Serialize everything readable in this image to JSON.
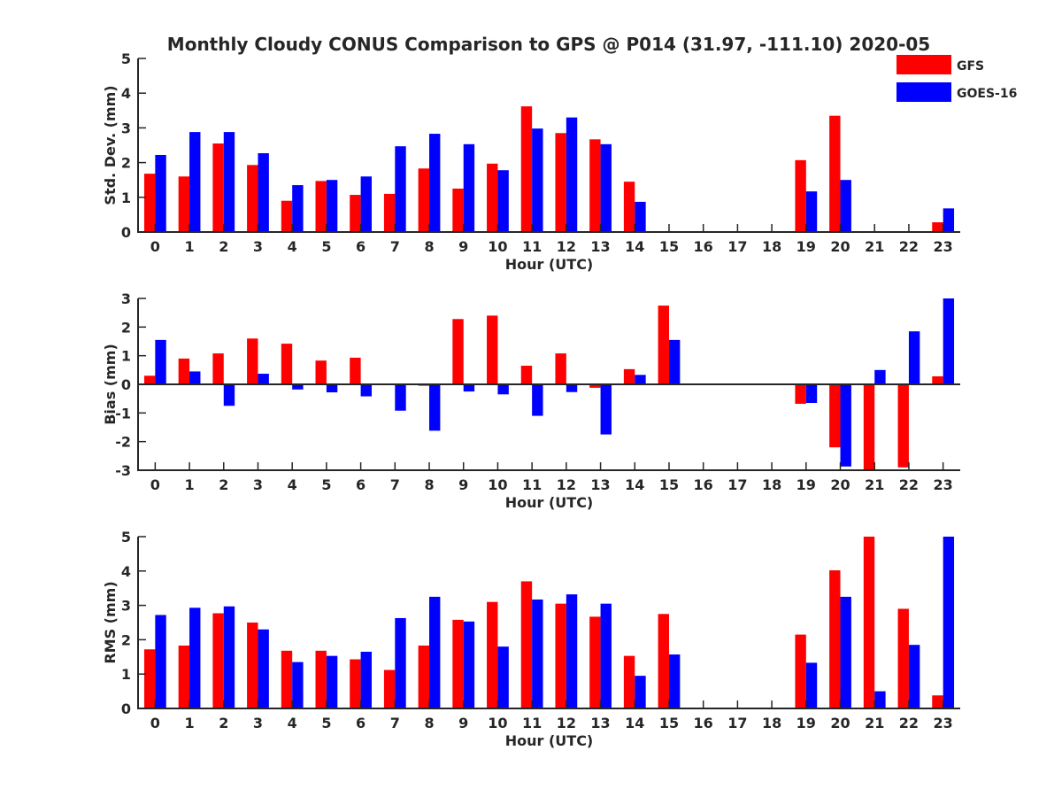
{
  "chart_data": {
    "type": "bar",
    "title": "Monthly Cloudy CONUS Comparison to GPS @ P014 (31.97, -111.10) 2020-05",
    "categories": [
      "0",
      "1",
      "2",
      "3",
      "4",
      "5",
      "6",
      "7",
      "8",
      "9",
      "10",
      "11",
      "12",
      "13",
      "14",
      "15",
      "16",
      "17",
      "18",
      "19",
      "20",
      "21",
      "22",
      "23"
    ],
    "legend": {
      "placement": "top-right",
      "entries": [
        {
          "name": "GFS",
          "color": "#ff0000"
        },
        {
          "name": "GOES-16",
          "color": "#0000ff"
        }
      ]
    },
    "panels": [
      {
        "id": "std",
        "ylabel": "Std. Dev. (mm)",
        "xlabel": "Hour (UTC)",
        "ylim": [
          0,
          5
        ],
        "yticks": [
          0,
          1,
          2,
          3,
          4,
          5
        ],
        "series": [
          {
            "name": "GFS",
            "color": "#ff0000",
            "values": [
              1.68,
              1.6,
              2.55,
              1.93,
              0.9,
              1.47,
              1.07,
              1.1,
              1.83,
              1.25,
              1.97,
              3.62,
              2.85,
              2.67,
              1.45,
              0,
              0,
              0,
              0,
              2.07,
              3.35,
              0,
              0,
              0.28
            ]
          },
          {
            "name": "GOES-16",
            "color": "#0000ff",
            "values": [
              2.22,
              2.88,
              2.88,
              2.27,
              1.35,
              1.5,
              1.6,
              2.47,
              2.83,
              2.53,
              1.78,
              2.98,
              3.3,
              2.53,
              0.87,
              0,
              0,
              0,
              0,
              1.17,
              1.5,
              0,
              0,
              0.68
            ]
          }
        ]
      },
      {
        "id": "bias",
        "ylabel": "Bias (mm)",
        "xlabel": "Hour (UTC)",
        "ylim": [
          -3,
          3
        ],
        "yticks": [
          -3,
          -2,
          -1,
          0,
          1,
          2,
          3
        ],
        "series": [
          {
            "name": "GFS",
            "color": "#ff0000",
            "values": [
              0.3,
              0.9,
              1.08,
              1.6,
              1.42,
              0.83,
              0.93,
              0,
              -0.05,
              2.28,
              2.4,
              0.65,
              1.08,
              -0.12,
              0.53,
              2.75,
              0,
              0,
              0,
              -0.68,
              -2.2,
              -3.0,
              -2.9,
              0.28
            ]
          },
          {
            "name": "GOES-16",
            "color": "#0000ff",
            "values": [
              1.55,
              0.45,
              -0.75,
              0.37,
              -0.18,
              -0.28,
              -0.42,
              -0.92,
              -1.62,
              -0.25,
              -0.35,
              -1.1,
              -0.27,
              -1.75,
              0.33,
              1.55,
              0,
              0,
              0,
              -0.65,
              -2.87,
              0.5,
              1.85,
              3.0
            ]
          }
        ]
      },
      {
        "id": "rms",
        "ylabel": "RMS (mm)",
        "xlabel": "Hour (UTC)",
        "ylim": [
          0,
          5
        ],
        "yticks": [
          0,
          1,
          2,
          3,
          4,
          5
        ],
        "series": [
          {
            "name": "GFS",
            "color": "#ff0000",
            "values": [
              1.72,
              1.83,
              2.77,
              2.5,
              1.68,
              1.68,
              1.43,
              1.12,
              1.83,
              2.58,
              3.1,
              3.7,
              3.05,
              2.67,
              1.53,
              2.75,
              0,
              0,
              0,
              2.15,
              4.02,
              5.0,
              2.9,
              0.38
            ]
          },
          {
            "name": "GOES-16",
            "color": "#0000ff",
            "values": [
              2.72,
              2.93,
              2.97,
              2.3,
              1.35,
              1.53,
              1.65,
              2.63,
              3.25,
              2.53,
              1.8,
              3.17,
              3.32,
              3.05,
              0.95,
              1.57,
              0,
              0,
              0,
              1.33,
              3.25,
              0.5,
              1.85,
              5.0
            ]
          }
        ]
      }
    ]
  }
}
